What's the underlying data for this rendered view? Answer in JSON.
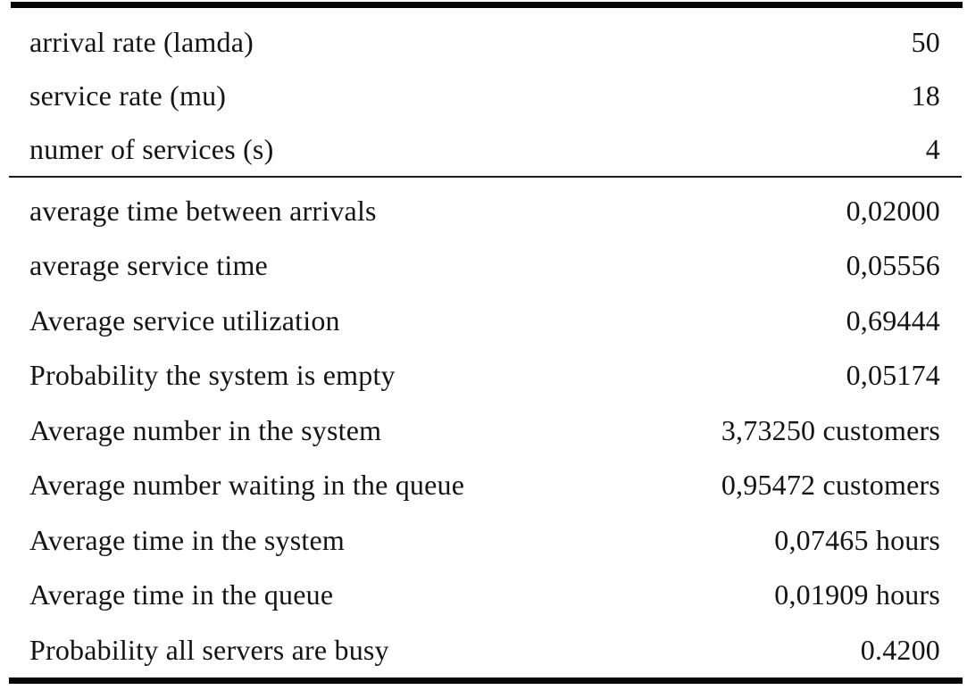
{
  "table": {
    "inputs": [
      {
        "label": "arrival rate (lamda)",
        "value": "50"
      },
      {
        "label": "service rate (mu)",
        "value": "18"
      },
      {
        "label": "numer of services (s)",
        "value": "4"
      }
    ],
    "results": [
      {
        "label": "average time between arrivals",
        "value": "0,02000"
      },
      {
        "label": "average service time",
        "value": "0,05556"
      },
      {
        "label": "Average service utilization",
        "value": "0,69444"
      },
      {
        "label": "Probability the system is empty",
        "value": "0,05174"
      },
      {
        "label": "Average number in the system",
        "value": "3,73250 customers"
      },
      {
        "label": "Average number waiting in the queue",
        "value": "0,95472 customers"
      },
      {
        "label": "Average time in the system",
        "value": "0,07465 hours"
      },
      {
        "label": "Average time in the queue",
        "value": "0,01909 hours"
      },
      {
        "label": "Probability all servers are busy",
        "value": "0.4200"
      }
    ],
    "colors": {
      "rule": "#050505",
      "text": "#141414",
      "background": "#ffffff"
    }
  }
}
